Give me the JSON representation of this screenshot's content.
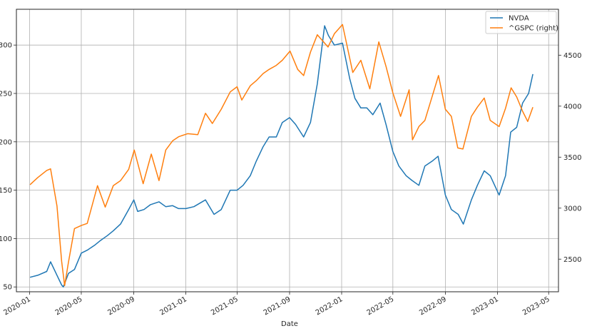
{
  "chart_data": {
    "type": "line",
    "title": "",
    "xlabel": "Date",
    "ylabel_left": "",
    "ylabel_right": "",
    "x_ticks": [
      "2020-01",
      "2020-05",
      "2020-09",
      "2021-01",
      "2021-05",
      "2021-09",
      "2022-01",
      "2022-05",
      "2022-09",
      "2023-01",
      "2023-05"
    ],
    "xlim": [
      "2019-12-01",
      "2023-05-24"
    ],
    "y_left_ticks": [
      50,
      100,
      150,
      200,
      250,
      300
    ],
    "y_left_lim": [
      45,
      337
    ],
    "y_right_ticks": [
      2500,
      3000,
      3500,
      4000,
      4500
    ],
    "y_right_lim": [
      2180,
      4950
    ],
    "grid": true,
    "legend_position": "top-right",
    "colors": {
      "NVDA": "#1f77b4",
      "GSPC": "#ff7f0e"
    },
    "series": [
      {
        "name": "NVDA",
        "axis": "left",
        "x": [
          "2020-01-02",
          "2020-01-20",
          "2020-02-10",
          "2020-02-19",
          "2020-03-05",
          "2020-03-16",
          "2020-03-20",
          "2020-04-01",
          "2020-04-15",
          "2020-05-01",
          "2020-05-15",
          "2020-06-01",
          "2020-06-15",
          "2020-07-01",
          "2020-07-15",
          "2020-08-01",
          "2020-08-20",
          "2020-09-01",
          "2020-09-10",
          "2020-09-25",
          "2020-10-10",
          "2020-10-30",
          "2020-11-15",
          "2020-12-01",
          "2020-12-15",
          "2021-01-01",
          "2021-01-20",
          "2021-02-16",
          "2021-03-08",
          "2021-03-25",
          "2021-04-15",
          "2021-05-01",
          "2021-05-15",
          "2021-06-01",
          "2021-06-15",
          "2021-07-01",
          "2021-07-15",
          "2021-08-01",
          "2021-08-15",
          "2021-09-01",
          "2021-09-15",
          "2021-10-04",
          "2021-10-20",
          "2021-11-05",
          "2021-11-22",
          "2021-12-01",
          "2021-12-15",
          "2022-01-03",
          "2022-01-20",
          "2022-02-01",
          "2022-02-15",
          "2022-03-01",
          "2022-03-15",
          "2022-04-01",
          "2022-04-15",
          "2022-05-01",
          "2022-05-15",
          "2022-06-01",
          "2022-06-15",
          "2022-07-01",
          "2022-07-15",
          "2022-08-01",
          "2022-08-15",
          "2022-09-01",
          "2022-09-15",
          "2022-10-01",
          "2022-10-13",
          "2022-11-01",
          "2022-11-15",
          "2022-12-01",
          "2022-12-15",
          "2023-01-05",
          "2023-01-20",
          "2023-02-01",
          "2023-02-15",
          "2023-03-01",
          "2023-03-15",
          "2023-03-25"
        ],
        "values": [
          60,
          62,
          66,
          76,
          62,
          52,
          50,
          64,
          68,
          85,
          88,
          93,
          98,
          103,
          108,
          115,
          130,
          140,
          128,
          130,
          135,
          138,
          133,
          134,
          131,
          131,
          133,
          140,
          125,
          130,
          150,
          150,
          155,
          165,
          180,
          195,
          205,
          205,
          220,
          225,
          218,
          205,
          220,
          260,
          320,
          310,
          300,
          302,
          265,
          245,
          235,
          235,
          228,
          240,
          218,
          190,
          175,
          165,
          160,
          155,
          175,
          180,
          185,
          145,
          130,
          125,
          115,
          140,
          155,
          170,
          165,
          145,
          165,
          210,
          215,
          240,
          250,
          270
        ]
      },
      {
        "name": "^GSPC (right)",
        "axis": "right",
        "x": [
          "2020-01-02",
          "2020-01-20",
          "2020-02-10",
          "2020-02-19",
          "2020-03-05",
          "2020-03-16",
          "2020-03-23",
          "2020-04-01",
          "2020-04-15",
          "2020-05-01",
          "2020-05-15",
          "2020-06-08",
          "2020-06-26",
          "2020-07-15",
          "2020-08-01",
          "2020-08-20",
          "2020-09-02",
          "2020-09-23",
          "2020-10-12",
          "2020-10-30",
          "2020-11-15",
          "2020-12-01",
          "2020-12-15",
          "2021-01-05",
          "2021-01-29",
          "2021-02-16",
          "2021-03-04",
          "2021-03-25",
          "2021-04-15",
          "2021-05-01",
          "2021-05-12",
          "2021-06-01",
          "2021-06-15",
          "2021-07-01",
          "2021-07-15",
          "2021-08-01",
          "2021-08-15",
          "2021-09-02",
          "2021-09-20",
          "2021-10-04",
          "2021-10-20",
          "2021-11-05",
          "2021-11-30",
          "2021-12-15",
          "2022-01-03",
          "2022-01-27",
          "2022-02-15",
          "2022-03-08",
          "2022-03-29",
          "2022-04-15",
          "2022-05-01",
          "2022-05-19",
          "2022-06-08",
          "2022-06-16",
          "2022-07-01",
          "2022-07-15",
          "2022-08-16",
          "2022-09-01",
          "2022-09-15",
          "2022-09-30",
          "2022-10-12",
          "2022-11-01",
          "2022-11-15",
          "2022-12-01",
          "2022-12-15",
          "2023-01-05",
          "2023-01-20",
          "2023-02-02",
          "2023-02-15",
          "2023-03-01",
          "2023-03-13",
          "2023-03-25"
        ],
        "values": [
          3230,
          3300,
          3370,
          3385,
          3020,
          2480,
          2240,
          2470,
          2800,
          2830,
          2850,
          3220,
          3010,
          3220,
          3270,
          3380,
          3570,
          3240,
          3530,
          3270,
          3570,
          3660,
          3700,
          3730,
          3720,
          3930,
          3830,
          3970,
          4140,
          4190,
          4060,
          4200,
          4250,
          4320,
          4360,
          4400,
          4450,
          4540,
          4360,
          4300,
          4530,
          4700,
          4580,
          4710,
          4800,
          4330,
          4450,
          4170,
          4630,
          4390,
          4130,
          3900,
          4160,
          3670,
          3800,
          3860,
          4300,
          3970,
          3900,
          3590,
          3580,
          3900,
          3990,
          4080,
          3860,
          3800,
          3980,
          4180,
          4090,
          3950,
          3850,
          3990
        ]
      }
    ]
  }
}
